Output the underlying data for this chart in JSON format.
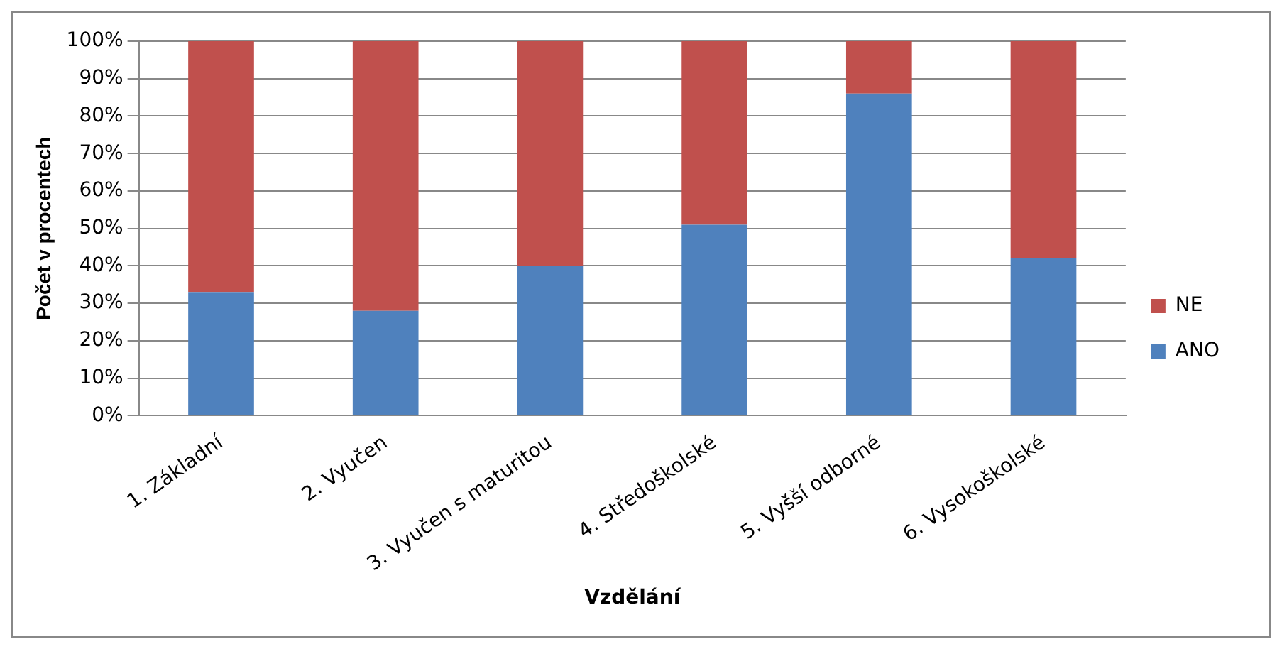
{
  "chart_data": {
    "type": "bar",
    "stacked": true,
    "xlabel": "Vzdělání",
    "ylabel": "Počet v procentech",
    "categories": [
      "1. Základní",
      "2. Vyučen",
      "3. Vyučen s maturitou",
      "4. Středoškolské",
      "5. Vyšší odborné",
      "6. Vysokoškolské"
    ],
    "series": [
      {
        "name": "ANO",
        "color": "#4f81bd",
        "values": [
          33,
          28,
          40,
          51,
          86,
          42
        ]
      },
      {
        "name": "NE",
        "color": "#c0504d",
        "values": [
          67,
          72,
          60,
          49,
          14,
          58
        ]
      }
    ],
    "ylim": [
      0,
      100
    ],
    "yticks": [
      {
        "value": 0,
        "label": "0%"
      },
      {
        "value": 10,
        "label": "10%"
      },
      {
        "value": 20,
        "label": "20%"
      },
      {
        "value": 30,
        "label": "30%"
      },
      {
        "value": 40,
        "label": "40%"
      },
      {
        "value": 50,
        "label": "50%"
      },
      {
        "value": 60,
        "label": "60%"
      },
      {
        "value": 70,
        "label": "70%"
      },
      {
        "value": 80,
        "label": "80%"
      },
      {
        "value": 90,
        "label": "90%"
      },
      {
        "value": 100,
        "label": "100%"
      }
    ],
    "grid": "y",
    "legend": "right"
  }
}
